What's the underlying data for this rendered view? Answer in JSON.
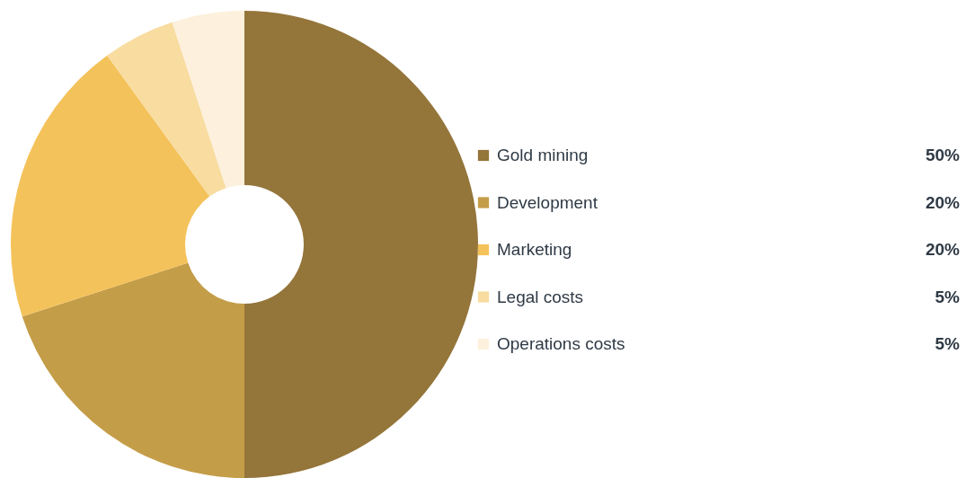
{
  "chart_data": {
    "type": "donut",
    "categories": [
      "Gold mining",
      "Development",
      "Marketing",
      "Legal costs",
      "Operations costs"
    ],
    "values": [
      50,
      20,
      20,
      5,
      5
    ],
    "colors": [
      "#94753a",
      "#c49d48",
      "#f4c25a",
      "#f8dca0",
      "#fdf0dc"
    ],
    "value_labels": [
      "50%",
      "20%",
      "20%",
      "5%",
      "5%"
    ],
    "legend": "right"
  }
}
